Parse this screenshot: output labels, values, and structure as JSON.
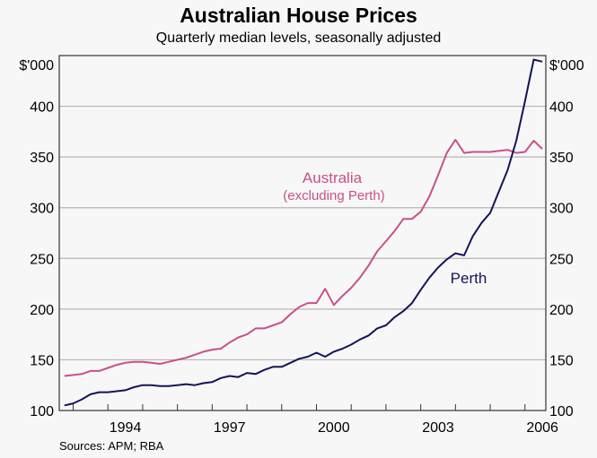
{
  "chart_data": {
    "type": "line",
    "title": "Australian House Prices",
    "subtitle": "Quarterly median levels, seasonally adjusted",
    "ylabel_left": "$'000",
    "ylabel_right": "$'000",
    "ylim": [
      100,
      450
    ],
    "yticks": [
      100,
      150,
      200,
      250,
      300,
      350,
      400
    ],
    "xlim": [
      1992.6,
      2006.6
    ],
    "xticks": [
      1994,
      1997,
      2000,
      2003,
      2006
    ],
    "xtick_labels": [
      "1994",
      "1997",
      "2000",
      "2003",
      "2006"
    ],
    "x_start": 1992.75,
    "x_step": 0.25,
    "grid": true,
    "series": [
      {
        "name": "Australia",
        "sublabel": "(excluding Perth)",
        "color": "#c9508a",
        "values": [
          134,
          135,
          136,
          139,
          139,
          142,
          145,
          147,
          148,
          148,
          147,
          146,
          148,
          150,
          152,
          155,
          158,
          160,
          161,
          167,
          172,
          175,
          181,
          181,
          184,
          187,
          195,
          202,
          206,
          206,
          220,
          204,
          213,
          221,
          231,
          243,
          257,
          267,
          277,
          289,
          289,
          296,
          311,
          332,
          354,
          367,
          354,
          355,
          355,
          355,
          356,
          357,
          354,
          355,
          366,
          358
        ]
      },
      {
        "name": "Perth",
        "color": "#14145a",
        "values": [
          105,
          107,
          111,
          116,
          118,
          118,
          119,
          120,
          123,
          125,
          125,
          124,
          124,
          125,
          126,
          125,
          127,
          128,
          132,
          134,
          133,
          137,
          136,
          140,
          143,
          143,
          147,
          151,
          153,
          157,
          153,
          158,
          161,
          165,
          170,
          174,
          181,
          184,
          192,
          198,
          206,
          219,
          231,
          241,
          249,
          255,
          253,
          272,
          285,
          295,
          316,
          337,
          366,
          405,
          446,
          444
        ]
      }
    ]
  },
  "source": "Sources: APM; RBA"
}
